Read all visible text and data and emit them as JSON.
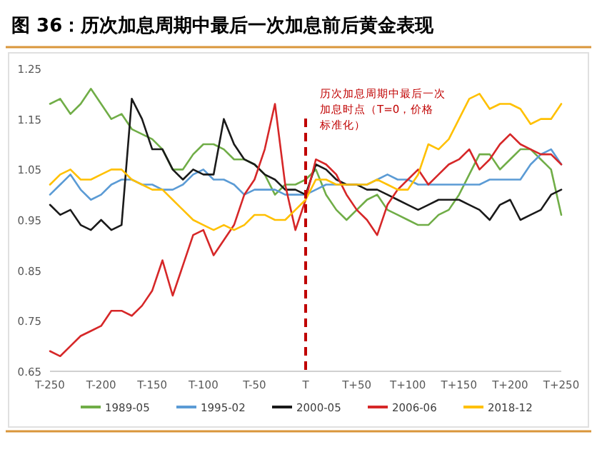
{
  "chart_data": {
    "type": "line",
    "title": "图 36：历次加息周期中最后一次加息前后黄金表现",
    "categories": [
      "T-250",
      null,
      null,
      null,
      null,
      "T-200",
      null,
      null,
      null,
      null,
      "T-150",
      null,
      null,
      null,
      null,
      "T-100",
      null,
      null,
      null,
      null,
      "T-50",
      null,
      null,
      null,
      null,
      "T",
      null,
      null,
      null,
      null,
      "T+50",
      null,
      null,
      null,
      null,
      "T+100",
      null,
      null,
      null,
      null,
      "T+150",
      null,
      null,
      null,
      null,
      "T+200",
      null,
      null,
      null,
      null,
      "T+250"
    ],
    "ylim": [
      0.65,
      1.25
    ],
    "yticks": [
      0.65,
      0.75,
      0.85,
      0.95,
      1.05,
      1.15,
      1.25
    ],
    "legend": "bottom",
    "ref_lines": [
      {
        "axis": "x",
        "value": "T",
        "label": "历次加息周期中最后一次加息时点（T=0，价格标准化）",
        "color": "#c00000",
        "line_style": "dashed"
      }
    ],
    "series": [
      {
        "name": "1989-05",
        "color": "#70ad47",
        "values": [
          1.18,
          1.19,
          1.16,
          1.18,
          1.21,
          1.18,
          1.15,
          1.16,
          1.13,
          1.12,
          1.11,
          1.09,
          1.05,
          1.05,
          1.08,
          1.1,
          1.1,
          1.09,
          1.07,
          1.07,
          1.06,
          1.04,
          1.0,
          1.02,
          1.02,
          1.03,
          1.05,
          1.0,
          0.97,
          0.95,
          0.97,
          0.99,
          1.0,
          0.97,
          0.96,
          0.95,
          0.94,
          0.94,
          0.96,
          0.97,
          1.0,
          1.04,
          1.08,
          1.08,
          1.05,
          1.07,
          1.09,
          1.09,
          1.07,
          1.05,
          0.96
        ]
      },
      {
        "name": "1995-02",
        "color": "#5b9bd5",
        "values": [
          1.0,
          1.02,
          1.04,
          1.01,
          0.99,
          1.0,
          1.02,
          1.03,
          1.03,
          1.02,
          1.02,
          1.01,
          1.01,
          1.02,
          1.04,
          1.05,
          1.03,
          1.03,
          1.02,
          1.0,
          1.01,
          1.01,
          1.01,
          1.0,
          1.0,
          1.0,
          1.01,
          1.02,
          1.02,
          1.02,
          1.02,
          1.02,
          1.03,
          1.04,
          1.03,
          1.03,
          1.02,
          1.02,
          1.02,
          1.02,
          1.02,
          1.02,
          1.02,
          1.03,
          1.03,
          1.03,
          1.03,
          1.06,
          1.08,
          1.09,
          1.06
        ]
      },
      {
        "name": "2000-05",
        "color": "#1a1a1a",
        "values": [
          0.98,
          0.96,
          0.97,
          0.94,
          0.93,
          0.95,
          0.93,
          0.94,
          1.19,
          1.15,
          1.09,
          1.09,
          1.05,
          1.03,
          1.05,
          1.04,
          1.04,
          1.15,
          1.1,
          1.07,
          1.06,
          1.04,
          1.03,
          1.01,
          1.01,
          1.0,
          1.06,
          1.05,
          1.03,
          1.02,
          1.02,
          1.01,
          1.01,
          1.0,
          0.99,
          0.98,
          0.97,
          0.98,
          0.99,
          0.99,
          0.99,
          0.98,
          0.97,
          0.95,
          0.98,
          0.99,
          0.95,
          0.96,
          0.97,
          1.0,
          1.01
        ]
      },
      {
        "name": "2006-06",
        "color": "#d62728",
        "values": [
          0.69,
          0.68,
          0.7,
          0.72,
          0.73,
          0.74,
          0.77,
          0.77,
          0.76,
          0.78,
          0.81,
          0.87,
          0.8,
          0.86,
          0.92,
          0.93,
          0.88,
          0.91,
          0.94,
          1.0,
          1.03,
          1.09,
          1.18,
          1.02,
          0.93,
          0.99,
          1.07,
          1.06,
          1.04,
          1.0,
          0.97,
          0.95,
          0.92,
          0.98,
          1.01,
          1.03,
          1.05,
          1.02,
          1.04,
          1.06,
          1.07,
          1.09,
          1.05,
          1.07,
          1.1,
          1.12,
          1.1,
          1.09,
          1.08,
          1.08,
          1.06
        ]
      },
      {
        "name": "2018-12",
        "color": "#ffc000",
        "values": [
          1.02,
          1.04,
          1.05,
          1.03,
          1.03,
          1.04,
          1.05,
          1.05,
          1.03,
          1.02,
          1.01,
          1.01,
          0.99,
          0.97,
          0.95,
          0.94,
          0.93,
          0.94,
          0.93,
          0.94,
          0.96,
          0.96,
          0.95,
          0.95,
          0.97,
          0.99,
          1.03,
          1.03,
          1.02,
          1.02,
          1.02,
          1.02,
          1.03,
          1.02,
          1.01,
          1.01,
          1.04,
          1.1,
          1.09,
          1.11,
          1.15,
          1.19,
          1.2,
          1.17,
          1.18,
          1.18,
          1.17,
          1.14,
          1.15,
          1.15,
          1.18
        ]
      }
    ]
  }
}
